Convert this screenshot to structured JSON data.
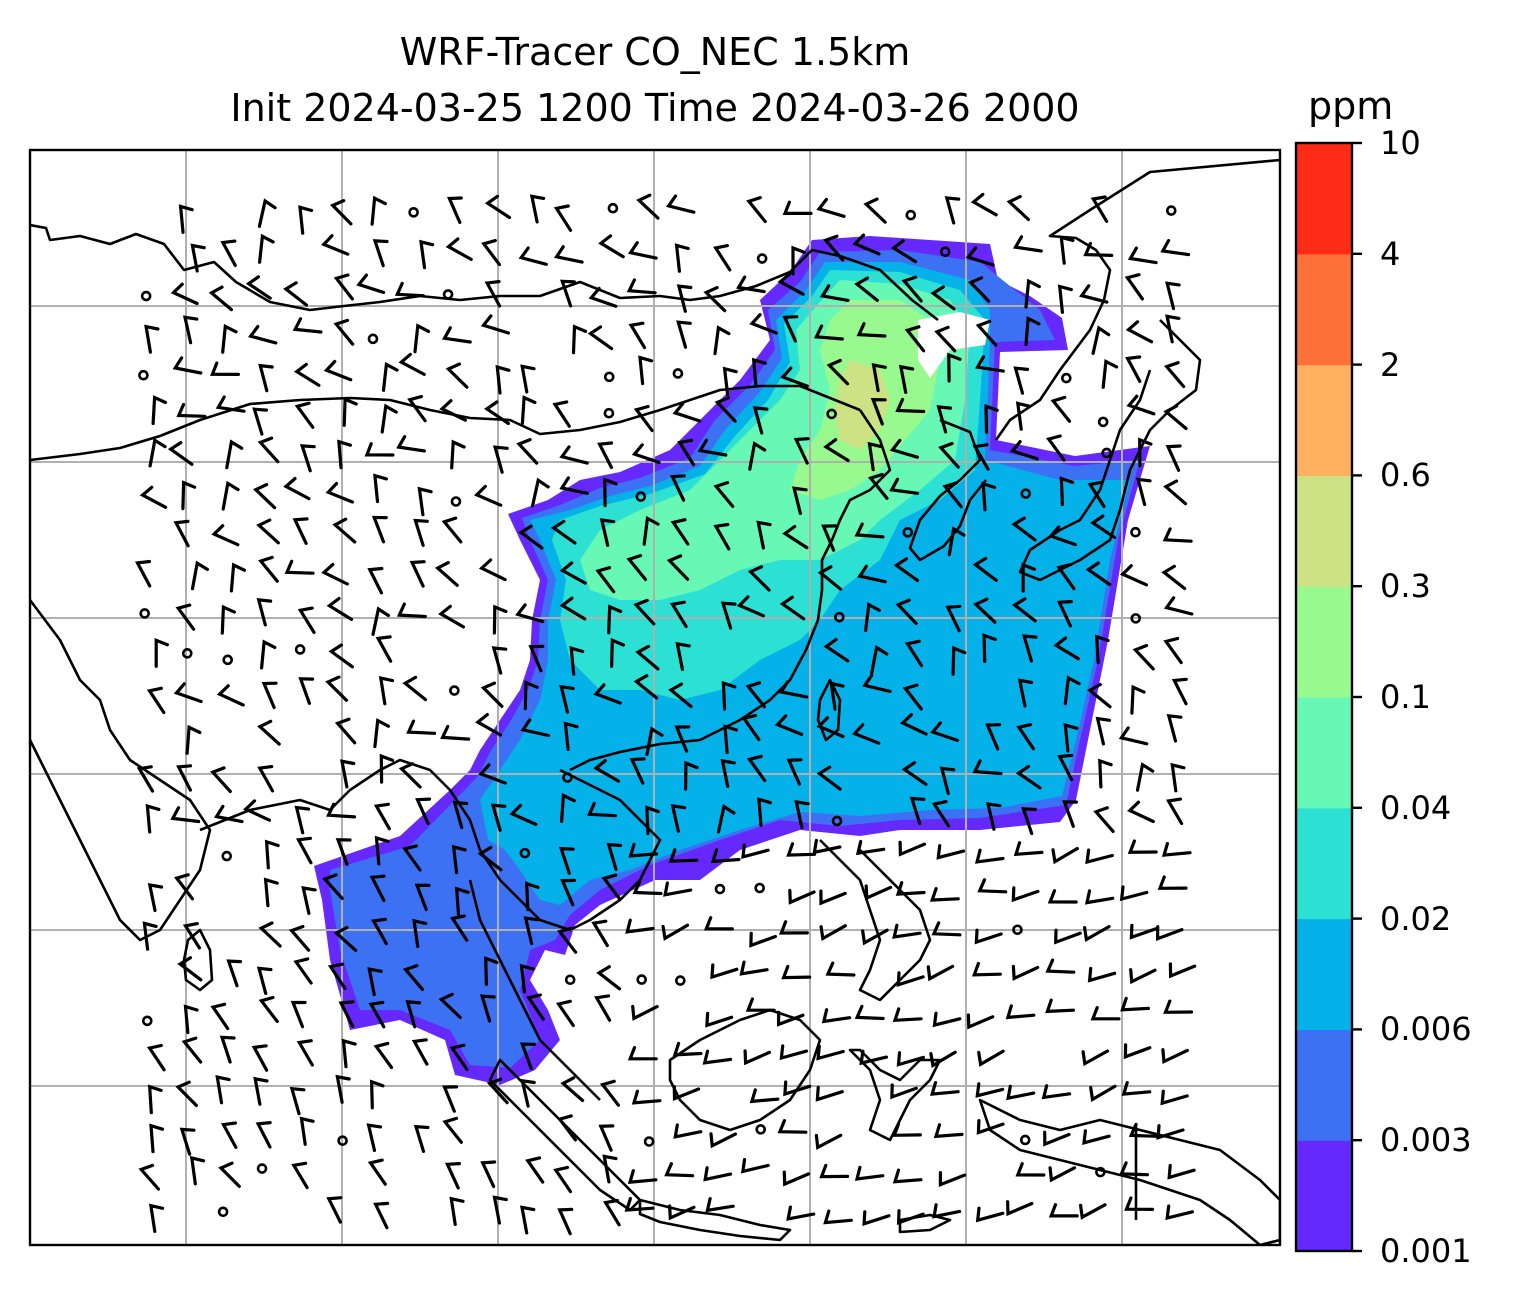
{
  "title_line1": "WRF-Tracer CO_NEC 1.5km",
  "title_line2": "Init 2024-03-25 1200 Time 2024-03-26 2000",
  "colorbar": {
    "unit": "ppm",
    "levels": [
      "0.001",
      "0.003",
      "0.006",
      "0.02",
      "0.04",
      "0.1",
      "0.3",
      "0.6",
      "2",
      "4",
      "10"
    ],
    "colors": [
      "#6629fd",
      "#3b71f2",
      "#05b1e9",
      "#2ce0d3",
      "#67f8b6",
      "#98f98f",
      "#cde185",
      "#feb15f",
      "#fe7037",
      "#fe2b16"
    ]
  },
  "map": {
    "field": "CO_NEC tracer concentration",
    "gridlines": true,
    "wind_barbs": true
  }
}
